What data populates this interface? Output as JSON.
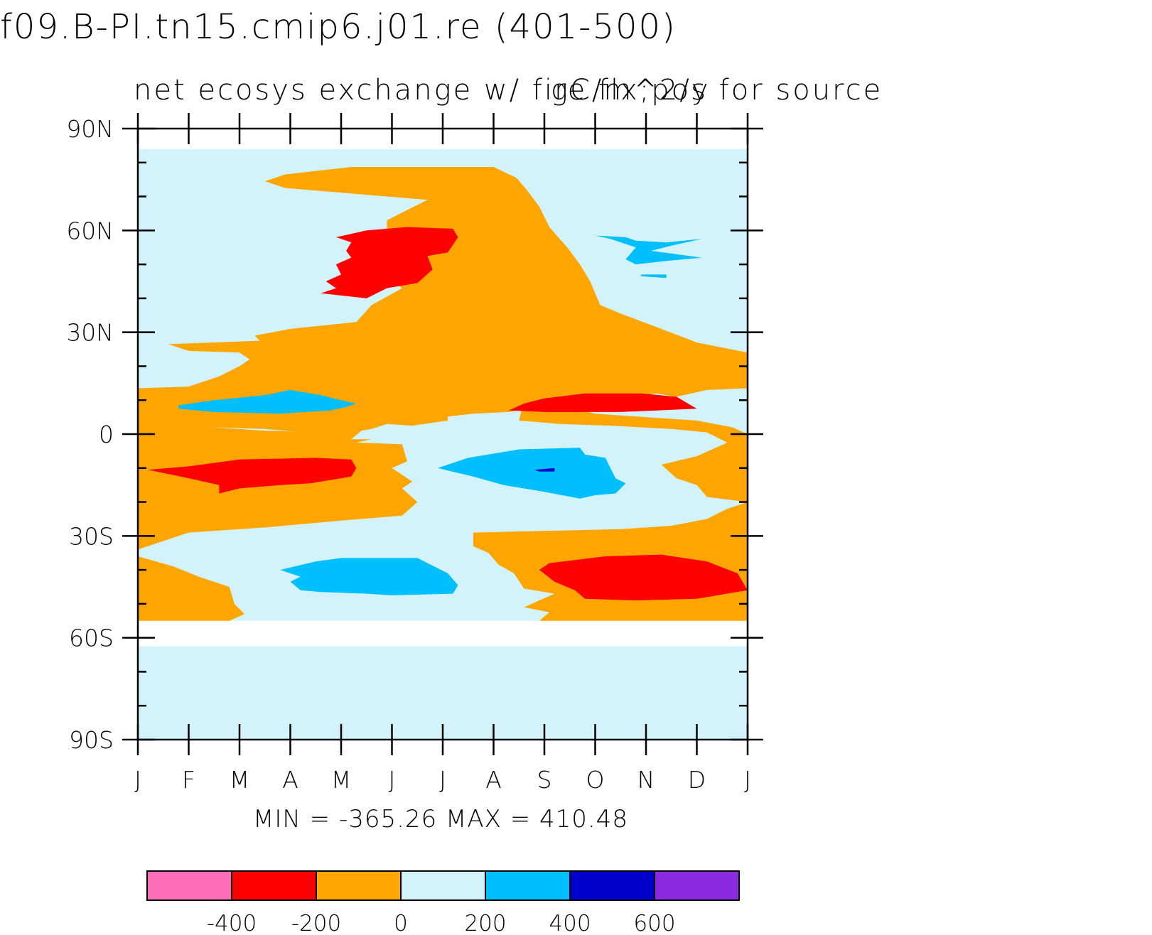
{
  "chart_data": {
    "type": "contour",
    "title": "f09.B-PI.tn15.cmip6.j01.re (401-500)",
    "subtitle": "net ecosys exchange w/ fire flx;pos for source",
    "units": "gC/m^2/y",
    "x_tick_labels": [
      "J",
      "F",
      "M",
      "A",
      "M",
      "J",
      "J",
      "A",
      "S",
      "O",
      "N",
      "D",
      "J"
    ],
    "y_tick_labels": [
      "90N",
      "60N",
      "30N",
      "0",
      "30S",
      "60S",
      "90S"
    ],
    "y_ticks": [
      90,
      60,
      30,
      0,
      -30,
      -60,
      -90
    ],
    "xlim": [
      0,
      12
    ],
    "ylim": [
      -90,
      90
    ],
    "min_max_text": "MIN = -365.26  MAX = 410.48",
    "min": -365.26,
    "max": 410.48,
    "colorbar": {
      "colors": [
        "#ff6eb9",
        "#ff0000",
        "#ffa500",
        "#d2f3fb",
        "#00bfff",
        "#0000cd",
        "#8a2be2"
      ],
      "labels": [
        "-400",
        "-200",
        "0",
        "200",
        "400",
        "600"
      ],
      "levels": [
        -400,
        -200,
        0,
        200,
        400,
        600
      ]
    },
    "regions": [
      {
        "name": "background",
        "level": "0 to 200",
        "color": "#d2f3fb",
        "points": [
          [
            0,
            84
          ],
          [
            12,
            84
          ],
          [
            12,
            -55
          ],
          [
            0,
            -55
          ]
        ]
      },
      {
        "name": "background-south",
        "level": "0 to 200",
        "color": "#d2f3fb",
        "points": [
          [
            0,
            -62.5
          ],
          [
            12,
            -62.5
          ],
          [
            12,
            -90
          ],
          [
            0,
            -90
          ]
        ]
      },
      {
        "name": "source-nh",
        "level": "-200 to 0",
        "color": "#ffa500",
        "points": [
          [
            2.9,
            76.5
          ],
          [
            4.2,
            78.7
          ],
          [
            7.0,
            78.7
          ],
          [
            7.45,
            75.5
          ],
          [
            7.65,
            72
          ],
          [
            7.9,
            67
          ],
          [
            8.1,
            61
          ],
          [
            8.45,
            55
          ],
          [
            8.7,
            50
          ],
          [
            8.9,
            45
          ],
          [
            9.1,
            38
          ],
          [
            9.5,
            35.5
          ],
          [
            10.3,
            31
          ],
          [
            11.0,
            27
          ],
          [
            12,
            24
          ],
          [
            12,
            13.5
          ],
          [
            11.2,
            13
          ],
          [
            10.6,
            11
          ],
          [
            10.2,
            12
          ],
          [
            9.4,
            10
          ],
          [
            8.3,
            9
          ],
          [
            7.3,
            6.5
          ],
          [
            6.6,
            6
          ],
          [
            6.0,
            5
          ],
          [
            5.7,
            5.5
          ],
          [
            6.1,
            6.5
          ],
          [
            6.1,
            4
          ],
          [
            5.4,
            2.5
          ],
          [
            4.9,
            3
          ],
          [
            4.6,
            1.5
          ],
          [
            4.4,
            1
          ],
          [
            4.2,
            -1.5
          ],
          [
            3.9,
            -1
          ],
          [
            3.3,
            0.5
          ],
          [
            2.5,
            1.5
          ],
          [
            1.5,
            2
          ],
          [
            0.5,
            2.5
          ],
          [
            0,
            4.5
          ],
          [
            0,
            13.5
          ],
          [
            1.0,
            14
          ],
          [
            1.6,
            17
          ],
          [
            2.0,
            20
          ],
          [
            2.2,
            22
          ],
          [
            2.0,
            24
          ],
          [
            1.0,
            24.5
          ],
          [
            0.6,
            26.5
          ],
          [
            2.4,
            27.5
          ],
          [
            2.3,
            29
          ],
          [
            3.0,
            31
          ],
          [
            4.3,
            33
          ],
          [
            4.6,
            38
          ],
          [
            5.2,
            43
          ],
          [
            4.8,
            47
          ],
          [
            5.1,
            52
          ],
          [
            4.9,
            58
          ],
          [
            4.9,
            63
          ],
          [
            5.7,
            69
          ],
          [
            4.1,
            71
          ],
          [
            2.9,
            72.5
          ],
          [
            2.5,
            74.5
          ]
        ]
      },
      {
        "name": "source-sh",
        "level": "-200 to 0",
        "color": "#ffa500",
        "points": [
          [
            0,
            6
          ],
          [
            0.5,
            5
          ],
          [
            1.0,
            2.5
          ],
          [
            2.5,
            1
          ],
          [
            3.8,
            0.5
          ],
          [
            4.2,
            -1.5
          ],
          [
            4.6,
            -1.5
          ],
          [
            4.3,
            -2.5
          ],
          [
            5.2,
            -3
          ],
          [
            5.3,
            -8
          ],
          [
            5.0,
            -10
          ],
          [
            5.4,
            -14
          ],
          [
            5.2,
            -16
          ],
          [
            5.5,
            -20
          ],
          [
            5.2,
            -24
          ],
          [
            4.0,
            -25.5
          ],
          [
            2.5,
            -27.5
          ],
          [
            1.0,
            -29
          ],
          [
            0,
            -34
          ],
          [
            0,
            -36
          ],
          [
            0.7,
            -39
          ],
          [
            1.2,
            -42
          ],
          [
            1.8,
            -45
          ],
          [
            1.9,
            -50
          ],
          [
            2.1,
            -53
          ],
          [
            1.8,
            -55
          ],
          [
            0,
            -55
          ]
        ]
      },
      {
        "name": "source-se",
        "level": "-200 to 0",
        "color": "#ffa500",
        "points": [
          [
            6.6,
            -29
          ],
          [
            8.0,
            -28.5
          ],
          [
            9.5,
            -28
          ],
          [
            10.5,
            -27
          ],
          [
            11.2,
            -25
          ],
          [
            11.6,
            -22
          ],
          [
            12,
            -20
          ],
          [
            12,
            -55
          ],
          [
            7.9,
            -55
          ],
          [
            8.1,
            -52.5
          ],
          [
            7.6,
            -51
          ],
          [
            8.2,
            -47
          ],
          [
            7.6,
            -45.5
          ],
          [
            7.4,
            -41
          ],
          [
            7.1,
            -38.5
          ],
          [
            6.9,
            -35
          ],
          [
            6.6,
            -33
          ]
        ]
      },
      {
        "name": "source-east-band",
        "level": "-200 to 0",
        "color": "#ffa500",
        "points": [
          [
            7.6,
            10
          ],
          [
            8.0,
            8.5
          ],
          [
            8.7,
            7
          ],
          [
            9.0,
            6
          ],
          [
            10.0,
            5
          ],
          [
            11.0,
            4
          ],
          [
            11.7,
            2
          ],
          [
            12,
            0
          ],
          [
            12,
            -20
          ],
          [
            11.2,
            -18.5
          ],
          [
            11.0,
            -15
          ],
          [
            10.6,
            -13
          ],
          [
            10.3,
            -9
          ],
          [
            11.0,
            -6.5
          ],
          [
            11.6,
            -2.5
          ],
          [
            11.2,
            0.5
          ],
          [
            10.5,
            1.5
          ],
          [
            9.3,
            2.5
          ],
          [
            8.3,
            3
          ],
          [
            7.5,
            4
          ]
        ]
      },
      {
        "name": "sink-ne",
        "level": "200 to 400",
        "color": "#00bfff",
        "points": [
          [
            9.0,
            58.5
          ],
          [
            9.6,
            58
          ],
          [
            9.8,
            57
          ],
          [
            10.4,
            56.5
          ],
          [
            11.1,
            57.5
          ],
          [
            10.5,
            55.5
          ],
          [
            10.1,
            54
          ],
          [
            11.1,
            52
          ],
          [
            10.4,
            51
          ],
          [
            9.8,
            50
          ],
          [
            9.6,
            51.5
          ],
          [
            9.8,
            55
          ],
          [
            9.3,
            57.5
          ]
        ]
      },
      {
        "name": "sink-ne-small",
        "level": "200 to 400",
        "color": "#00bfff",
        "points": [
          [
            9.9,
            47
          ],
          [
            10.4,
            47
          ],
          [
            10.4,
            46
          ],
          [
            9.9,
            46.5
          ]
        ]
      },
      {
        "name": "sink-tropic-n",
        "level": "200 to 400",
        "color": "#00bfff",
        "points": [
          [
            0.8,
            8.5
          ],
          [
            1.5,
            10
          ],
          [
            2.5,
            11.5
          ],
          [
            3.0,
            13
          ],
          [
            3.6,
            11.5
          ],
          [
            4.0,
            10
          ],
          [
            4.3,
            9
          ],
          [
            4.1,
            8
          ],
          [
            3.8,
            7
          ],
          [
            2.8,
            6
          ],
          [
            1.5,
            6.5
          ],
          [
            0.8,
            7.5
          ]
        ]
      },
      {
        "name": "sink-tropic-s",
        "level": "200 to 400",
        "color": "#00bfff",
        "points": [
          [
            5.9,
            -10
          ],
          [
            6.5,
            -7
          ],
          [
            7.5,
            -4.5
          ],
          [
            8.7,
            -4
          ],
          [
            8.8,
            -6
          ],
          [
            9.2,
            -7
          ],
          [
            9.4,
            -13
          ],
          [
            9.6,
            -14.5
          ],
          [
            9.4,
            -17.5
          ],
          [
            9.0,
            -18
          ],
          [
            8.7,
            -19
          ],
          [
            8.0,
            -17
          ],
          [
            7.2,
            -15
          ],
          [
            6.6,
            -12.5
          ]
        ]
      },
      {
        "name": "sink-sh",
        "level": "200 to 400",
        "color": "#00bfff",
        "points": [
          [
            2.8,
            -40
          ],
          [
            3.5,
            -37.5
          ],
          [
            4.0,
            -36.5
          ],
          [
            5.5,
            -36.5
          ],
          [
            5.9,
            -39.5
          ],
          [
            6.1,
            -41
          ],
          [
            6.3,
            -44.5
          ],
          [
            6.2,
            -47
          ],
          [
            5.0,
            -47.5
          ],
          [
            4.5,
            -47
          ],
          [
            3.6,
            -46.5
          ],
          [
            3.2,
            -46
          ],
          [
            3.0,
            -43.5
          ],
          [
            3.2,
            -42
          ]
        ]
      },
      {
        "name": "sink-dark",
        "level": "400 to 600",
        "color": "#0000cd",
        "points": [
          [
            7.8,
            -10.5
          ],
          [
            8.2,
            -10
          ],
          [
            8.2,
            -11
          ],
          [
            7.9,
            -11
          ]
        ]
      },
      {
        "name": "strong-source-nh",
        "level": "-400 to -200",
        "color": "#ff0000",
        "points": [
          [
            3.9,
            58
          ],
          [
            4.5,
            60
          ],
          [
            5.3,
            61
          ],
          [
            6.2,
            60.5
          ],
          [
            6.3,
            58
          ],
          [
            6.1,
            53.5
          ],
          [
            5.7,
            52.5
          ],
          [
            5.8,
            48.5
          ],
          [
            5.5,
            44.5
          ],
          [
            4.9,
            43
          ],
          [
            4.5,
            40
          ],
          [
            3.6,
            41.5
          ],
          [
            3.9,
            43
          ],
          [
            3.7,
            45
          ],
          [
            4.0,
            47
          ],
          [
            3.9,
            50
          ],
          [
            4.2,
            52
          ],
          [
            4.1,
            54
          ],
          [
            4.2,
            56.5
          ]
        ]
      },
      {
        "name": "strong-source-ne",
        "level": "-400 to -200",
        "color": "#ff0000",
        "points": [
          [
            7.3,
            7
          ],
          [
            7.6,
            9
          ],
          [
            8.0,
            10.5
          ],
          [
            8.8,
            12
          ],
          [
            9.9,
            12
          ],
          [
            10.6,
            11
          ],
          [
            11.0,
            7.5
          ],
          [
            9.5,
            6.5
          ],
          [
            8.0,
            6.5
          ]
        ]
      },
      {
        "name": "strong-source-sw",
        "level": "-400 to -200",
        "color": "#ff0000",
        "points": [
          [
            0.2,
            -10.5
          ],
          [
            1.0,
            -9.5
          ],
          [
            2.0,
            -7.5
          ],
          [
            3.5,
            -7
          ],
          [
            4.2,
            -7.5
          ],
          [
            4.3,
            -10
          ],
          [
            4.2,
            -12.5
          ],
          [
            3.4,
            -14.5
          ],
          [
            2.8,
            -15
          ],
          [
            2.0,
            -16
          ],
          [
            1.6,
            -17.5
          ],
          [
            1.6,
            -15
          ],
          [
            1.0,
            -13
          ]
        ]
      },
      {
        "name": "strong-source-se",
        "level": "-400 to -200",
        "color": "#ff0000",
        "points": [
          [
            8.1,
            -38
          ],
          [
            9.2,
            -36
          ],
          [
            10.3,
            -35.5
          ],
          [
            11.2,
            -37.5
          ],
          [
            11.8,
            -41
          ],
          [
            12,
            -46
          ],
          [
            11.0,
            -48.5
          ],
          [
            9.8,
            -49
          ],
          [
            8.8,
            -48.5
          ],
          [
            8.6,
            -46
          ],
          [
            8.2,
            -43.5
          ],
          [
            7.9,
            -40
          ]
        ]
      }
    ]
  }
}
